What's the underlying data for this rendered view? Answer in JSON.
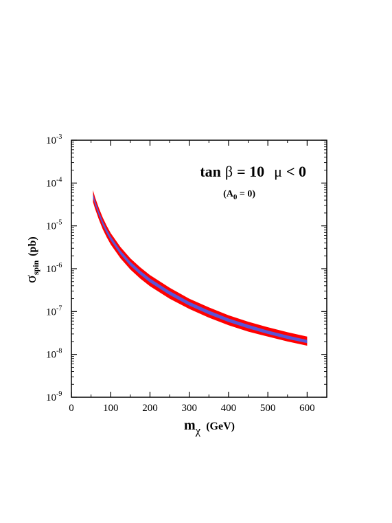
{
  "chart_data": {
    "type": "area",
    "title": "",
    "annotation_line1": {
      "prefix": "tan",
      "beta": "β",
      "eq": "= 10",
      "mu": "μ",
      "cond": "< 0"
    },
    "annotation_line2": {
      "open": "(A",
      "sub": "0",
      "close": " = 0)"
    },
    "xlabel": {
      "main": "m",
      "sub": "χ",
      "units": "(GeV)"
    },
    "ylabel": {
      "main": "σ",
      "sub": "spin",
      "units": "(pb)"
    },
    "xlim": [
      0,
      650
    ],
    "ylim": [
      1e-09,
      0.001
    ],
    "yscale": "log",
    "grid": false,
    "x_ticks": [
      {
        "value": 0,
        "label": "0"
      },
      {
        "value": 100,
        "label": "100"
      },
      {
        "value": 200,
        "label": "200"
      },
      {
        "value": 300,
        "label": "300"
      },
      {
        "value": 400,
        "label": "400"
      },
      {
        "value": 500,
        "label": "500"
      },
      {
        "value": 600,
        "label": "600"
      }
    ],
    "y_ticks": [
      {
        "value": 1e-09,
        "base": "10",
        "exp": "-9"
      },
      {
        "value": 1e-08,
        "base": "10",
        "exp": "-8"
      },
      {
        "value": 1e-07,
        "base": "10",
        "exp": "-7"
      },
      {
        "value": 1e-06,
        "base": "10",
        "exp": "-6"
      },
      {
        "value": 1e-05,
        "base": "10",
        "exp": "-5"
      },
      {
        "value": 0.0001,
        "base": "10",
        "exp": "-4"
      },
      {
        "value": 0.001,
        "base": "10",
        "exp": "-3"
      }
    ],
    "colors": {
      "band_outer": "#ff0000",
      "band_inner": "#5a55d6",
      "axes": "#000000"
    },
    "series": [
      {
        "role": "outer-band",
        "x": [
          55,
          60,
          70,
          80,
          90,
          100,
          125,
          150,
          175,
          200,
          250,
          300,
          350,
          400,
          450,
          500,
          550,
          600
        ],
        "upper": [
          6.8e-05,
          4.7e-05,
          2.6e-05,
          1.55e-05,
          1e-05,
          6.8e-06,
          3.2e-06,
          1.75e-06,
          1.08e-06,
          7.1e-07,
          3.6e-07,
          2e-07,
          1.25e-07,
          8.2e-08,
          5.8e-08,
          4.3e-08,
          3.3e-08,
          2.6e-08
        ],
        "lower": [
          3.6e-05,
          2.55e-05,
          1.4e-05,
          8.3e-06,
          5.4e-06,
          3.7e-06,
          1.75e-06,
          9.6e-07,
          5.9e-07,
          3.9e-07,
          2e-07,
          1.15e-07,
          7.2e-08,
          4.8e-08,
          3.4e-08,
          2.6e-08,
          2e-08,
          1.6e-08
        ]
      },
      {
        "role": "inner-band",
        "x": [
          55,
          60,
          70,
          80,
          90,
          100,
          125,
          150,
          175,
          200,
          250,
          300,
          350,
          400,
          450,
          500,
          550,
          600
        ],
        "upper": [
          5.6e-05,
          3.9e-05,
          2.15e-05,
          1.28e-05,
          8.3e-06,
          5.7e-06,
          2.65e-06,
          1.46e-06,
          9e-07,
          5.9e-07,
          3e-07,
          1.68e-07,
          1.05e-07,
          6.9e-08,
          4.9e-08,
          3.6e-08,
          2.75e-08,
          2.18e-08
        ],
        "lower": [
          4.5e-05,
          3.15e-05,
          1.74e-05,
          1.03e-05,
          6.7e-06,
          4.6e-06,
          2.15e-06,
          1.18e-06,
          7.3e-07,
          4.8e-07,
          2.45e-07,
          1.38e-07,
          8.6e-08,
          5.7e-08,
          4.05e-08,
          3e-08,
          2.3e-08,
          1.83e-08
        ]
      }
    ]
  }
}
